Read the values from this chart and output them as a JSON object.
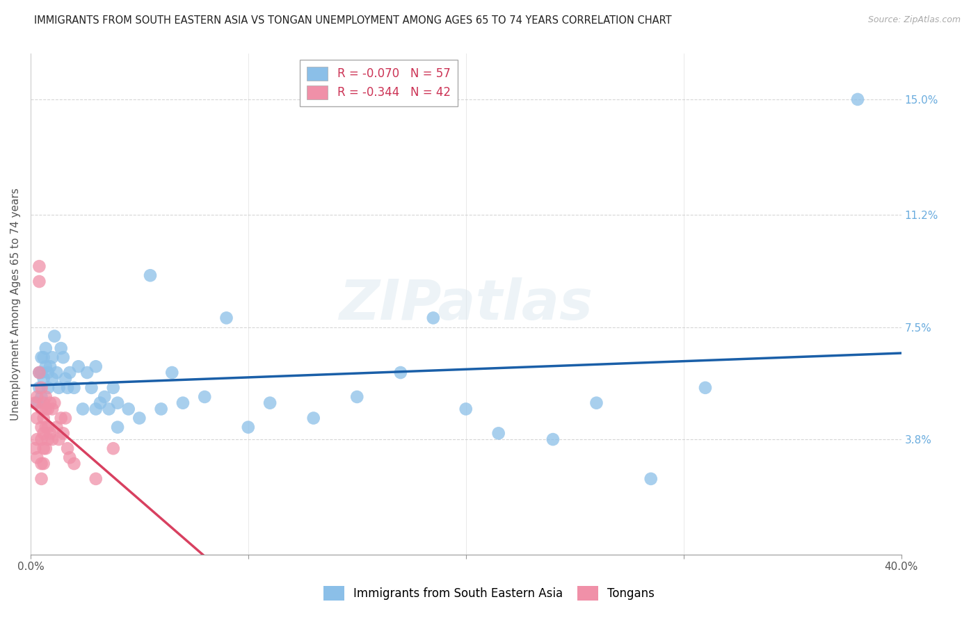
{
  "title": "IMMIGRANTS FROM SOUTH EASTERN ASIA VS TONGAN UNEMPLOYMENT AMONG AGES 65 TO 74 YEARS CORRELATION CHART",
  "source": "Source: ZipAtlas.com",
  "ylabel": "Unemployment Among Ages 65 to 74 years",
  "y_tick_labels": [
    "15.0%",
    "11.2%",
    "7.5%",
    "3.8%"
  ],
  "y_tick_values": [
    0.15,
    0.112,
    0.075,
    0.038
  ],
  "legend_bottom": [
    "Immigrants from South Eastern Asia",
    "Tongans"
  ],
  "watermark": "ZIPatlas",
  "blue_color": "#8bbfe8",
  "pink_color": "#f090a8",
  "blue_line_color": "#1a5fa8",
  "pink_line_color": "#d84060",
  "blue_scatter": [
    [
      0.003,
      0.05
    ],
    [
      0.004,
      0.055
    ],
    [
      0.004,
      0.06
    ],
    [
      0.005,
      0.052
    ],
    [
      0.005,
      0.06
    ],
    [
      0.005,
      0.065
    ],
    [
      0.006,
      0.058
    ],
    [
      0.006,
      0.065
    ],
    [
      0.007,
      0.062
    ],
    [
      0.007,
      0.068
    ],
    [
      0.008,
      0.055
    ],
    [
      0.008,
      0.06
    ],
    [
      0.009,
      0.062
    ],
    [
      0.01,
      0.058
    ],
    [
      0.01,
      0.065
    ],
    [
      0.011,
      0.072
    ],
    [
      0.012,
      0.06
    ],
    [
      0.013,
      0.055
    ],
    [
      0.014,
      0.068
    ],
    [
      0.015,
      0.065
    ],
    [
      0.016,
      0.058
    ],
    [
      0.017,
      0.055
    ],
    [
      0.018,
      0.06
    ],
    [
      0.02,
      0.055
    ],
    [
      0.022,
      0.062
    ],
    [
      0.024,
      0.048
    ],
    [
      0.026,
      0.06
    ],
    [
      0.028,
      0.055
    ],
    [
      0.03,
      0.062
    ],
    [
      0.03,
      0.048
    ],
    [
      0.032,
      0.05
    ],
    [
      0.034,
      0.052
    ],
    [
      0.036,
      0.048
    ],
    [
      0.038,
      0.055
    ],
    [
      0.04,
      0.05
    ],
    [
      0.04,
      0.042
    ],
    [
      0.045,
      0.048
    ],
    [
      0.05,
      0.045
    ],
    [
      0.055,
      0.092
    ],
    [
      0.06,
      0.048
    ],
    [
      0.065,
      0.06
    ],
    [
      0.07,
      0.05
    ],
    [
      0.08,
      0.052
    ],
    [
      0.09,
      0.078
    ],
    [
      0.1,
      0.042
    ],
    [
      0.11,
      0.05
    ],
    [
      0.13,
      0.045
    ],
    [
      0.15,
      0.052
    ],
    [
      0.17,
      0.06
    ],
    [
      0.185,
      0.078
    ],
    [
      0.2,
      0.048
    ],
    [
      0.215,
      0.04
    ],
    [
      0.24,
      0.038
    ],
    [
      0.26,
      0.05
    ],
    [
      0.285,
      0.025
    ],
    [
      0.31,
      0.055
    ],
    [
      0.38,
      0.15
    ]
  ],
  "pink_scatter": [
    [
      0.002,
      0.05
    ],
    [
      0.002,
      0.035
    ],
    [
      0.003,
      0.052
    ],
    [
      0.003,
      0.045
    ],
    [
      0.003,
      0.038
    ],
    [
      0.003,
      0.032
    ],
    [
      0.004,
      0.06
    ],
    [
      0.004,
      0.095
    ],
    [
      0.004,
      0.09
    ],
    [
      0.005,
      0.055
    ],
    [
      0.005,
      0.048
    ],
    [
      0.005,
      0.042
    ],
    [
      0.005,
      0.038
    ],
    [
      0.005,
      0.03
    ],
    [
      0.005,
      0.025
    ],
    [
      0.006,
      0.05
    ],
    [
      0.006,
      0.045
    ],
    [
      0.006,
      0.04
    ],
    [
      0.006,
      0.035
    ],
    [
      0.006,
      0.03
    ],
    [
      0.007,
      0.052
    ],
    [
      0.007,
      0.048
    ],
    [
      0.007,
      0.042
    ],
    [
      0.007,
      0.035
    ],
    [
      0.008,
      0.048
    ],
    [
      0.008,
      0.042
    ],
    [
      0.008,
      0.038
    ],
    [
      0.009,
      0.05
    ],
    [
      0.009,
      0.04
    ],
    [
      0.01,
      0.048
    ],
    [
      0.01,
      0.038
    ],
    [
      0.011,
      0.05
    ],
    [
      0.012,
      0.042
    ],
    [
      0.013,
      0.038
    ],
    [
      0.014,
      0.045
    ],
    [
      0.015,
      0.04
    ],
    [
      0.016,
      0.045
    ],
    [
      0.017,
      0.035
    ],
    [
      0.018,
      0.032
    ],
    [
      0.02,
      0.03
    ],
    [
      0.03,
      0.025
    ],
    [
      0.038,
      0.035
    ]
  ],
  "xlim": [
    0,
    0.4
  ],
  "ylim": [
    0,
    0.165
  ],
  "background_color": "#ffffff",
  "grid_color": "#cccccc",
  "title_fontsize": 10.5,
  "axis_label_fontsize": 11,
  "tick_fontsize": 11
}
